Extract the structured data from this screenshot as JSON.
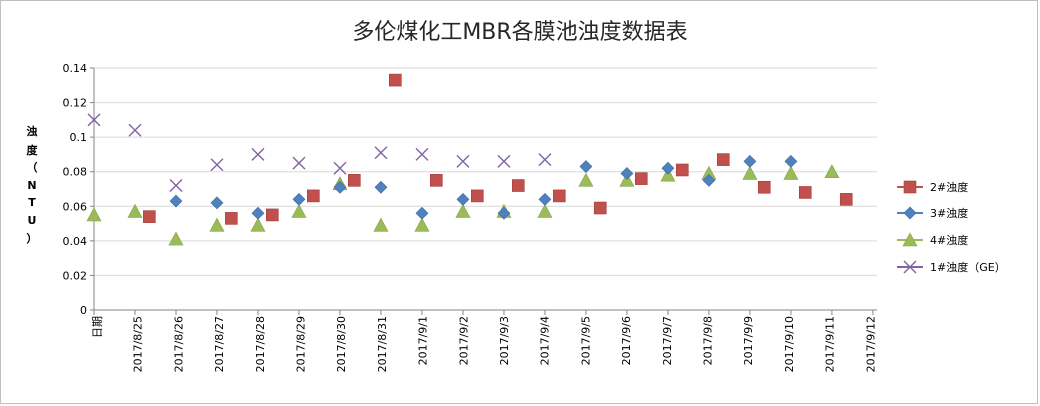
{
  "chart_data": {
    "type": "scatter",
    "title": "多伦煤化工MBR各膜池浊度数据表",
    "ylabel": [
      "浊",
      "度",
      "（",
      "N",
      "T",
      "U",
      "）"
    ],
    "xlabel": "",
    "ylim": [
      0,
      0.14
    ],
    "yticks": [
      0,
      0.02,
      0.04,
      0.06,
      0.08,
      0.1,
      0.12,
      0.14
    ],
    "ytick_labels": [
      "0",
      "0.02",
      "0.04",
      "0.06",
      "0.08",
      "0.1",
      "0.12",
      "0.14"
    ],
    "x_range": [
      0,
      38.2
    ],
    "x_tick_labels": [
      "日期",
      "2017/8/25",
      "2017/8/26",
      "2017/8/27",
      "2017/8/28",
      "2017/8/29",
      "2017/8/30",
      "2017/8/31",
      "2017/9/1",
      "2017/9/2",
      "2017/9/3",
      "2017/9/4",
      "2017/9/5",
      "2017/9/6",
      "2017/9/7",
      "2017/9/8",
      "2017/9/9",
      "2017/9/10",
      "2017/9/11",
      "2017/9/12"
    ],
    "grid": true,
    "legend_position": "right",
    "series": [
      {
        "name": "2#浊度",
        "marker": "square",
        "color": "#c0504d",
        "x": [
          2.7,
          6.7,
          8.7,
          10.7,
          12.7,
          14.7,
          16.7,
          18.7,
          20.7,
          22.7,
          24.7,
          26.7,
          28.7,
          30.7,
          32.7,
          34.7,
          36.7
        ],
        "y": [
          0.054,
          0.053,
          0.055,
          0.066,
          0.075,
          0.133,
          0.075,
          0.066,
          0.072,
          0.066,
          0.059,
          0.076,
          0.081,
          0.087,
          0.071,
          0.068,
          0.064
        ]
      },
      {
        "name": "3#浊度",
        "marker": "diamond",
        "color": "#4f81bd",
        "x": [
          4.0,
          6.0,
          8.0,
          10.0,
          12.0,
          14.0,
          16.0,
          18.0,
          20.0,
          22.0,
          24.0,
          26.0,
          28.0,
          30.0,
          32.0,
          34.0
        ],
        "y": [
          0.063,
          0.062,
          0.056,
          0.064,
          0.071,
          0.071,
          0.056,
          0.064,
          0.056,
          0.064,
          0.083,
          0.079,
          0.082,
          0.075,
          0.086,
          0.086
        ]
      },
      {
        "name": "4#浊度",
        "marker": "triangle",
        "color": "#9bbb59",
        "x": [
          0,
          2.0,
          4.0,
          6.0,
          8.0,
          10.0,
          12.0,
          14.0,
          16.0,
          18.0,
          20.0,
          22.0,
          24.0,
          26.0,
          28.0,
          30.0,
          32.0,
          34.0,
          36.0
        ],
        "y": [
          0.055,
          0.057,
          0.041,
          0.049,
          0.049,
          0.057,
          0.073,
          0.049,
          0.049,
          0.057,
          0.057,
          0.057,
          0.075,
          0.075,
          0.078,
          0.079,
          0.079,
          0.079,
          0.08
        ]
      },
      {
        "name": "1#浊度（GE）",
        "marker": "x",
        "color": "#8064a2",
        "x": [
          0,
          2.0,
          4.0,
          6.0,
          8.0,
          10.0,
          12.0,
          14.0,
          16.0,
          18.0,
          20.0,
          22.0
        ],
        "y": [
          0.11,
          0.104,
          0.072,
          0.084,
          0.09,
          0.085,
          0.082,
          0.091,
          0.09,
          0.086,
          0.086,
          0.087
        ]
      }
    ]
  }
}
